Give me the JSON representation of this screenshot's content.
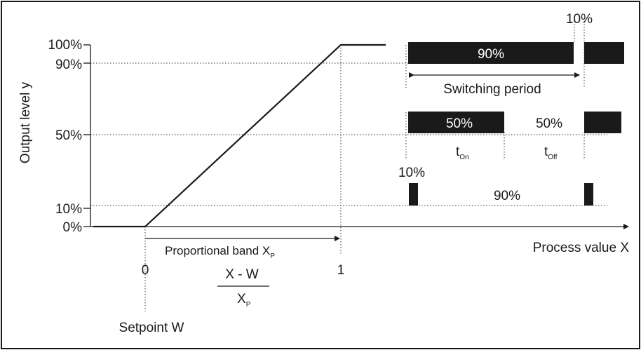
{
  "y_axis": {
    "label": "Output level y",
    "ticks": [
      "100%",
      "90%",
      "50%",
      "10%",
      "0%"
    ]
  },
  "x_axis": {
    "label": "Process value X",
    "tick_0": "0",
    "tick_1": "1"
  },
  "proportional_band": {
    "text": "Proportional band X",
    "sub": "P"
  },
  "formula": {
    "numerator": "X - W",
    "denominator": "X",
    "denominator_sub": "P"
  },
  "setpoint_label": "Setpoint W",
  "pulse_rows": {
    "row_90": {
      "on_label": "90%",
      "off_label": "10%",
      "period_label": "Switching period"
    },
    "row_50": {
      "on_label": "50%",
      "off_label": "50%",
      "t_on": "t",
      "t_on_sub": "On",
      "t_off": "t",
      "t_off_sub": "Off"
    },
    "row_10": {
      "on_label": "10%",
      "off_label": "90%"
    }
  }
}
